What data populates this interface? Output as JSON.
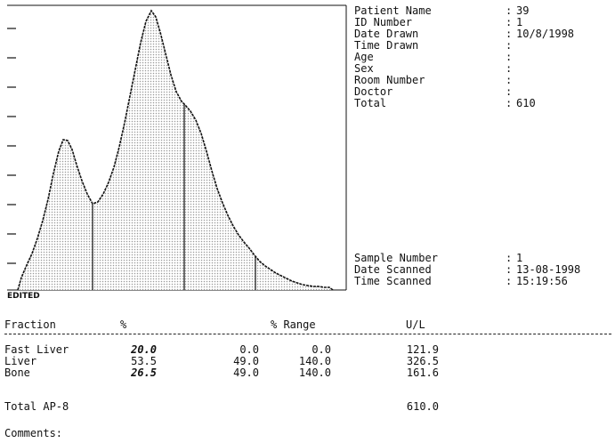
{
  "report": {
    "chart_tag": "EDITED",
    "patient_info": [
      {
        "label": "Patient Name",
        "value": "39"
      },
      {
        "label": "ID Number",
        "value": "1"
      },
      {
        "label": "Date Drawn",
        "value": "10/8/1998"
      },
      {
        "label": "Time Drawn",
        "value": ""
      },
      {
        "label": "Age",
        "value": ""
      },
      {
        "label": "Sex",
        "value": ""
      },
      {
        "label": "Room Number",
        "value": ""
      },
      {
        "label": "Doctor",
        "value": ""
      },
      {
        "label": "Total",
        "value": "610"
      }
    ],
    "sample_info": [
      {
        "label": "Sample Number",
        "value": "1"
      },
      {
        "label": "Date Scanned",
        "value": "13-08-1998"
      },
      {
        "label": "Time Scanned",
        "value": "15:19:56"
      }
    ],
    "colon": ":",
    "table": {
      "headers": {
        "fraction": "Fraction",
        "percent": "%",
        "range": "% Range",
        "units": "U/L"
      },
      "rows": [
        {
          "name": "Fast Liver",
          "percent": "20.0",
          "range_low": "0.0",
          "range_high": "0.0",
          "units": "121.9"
        },
        {
          "name": "Liver",
          "percent": "53.5",
          "range_low": "49.0",
          "range_high": "140.0",
          "units": "326.5"
        },
        {
          "name": "Bone",
          "percent": "26.5",
          "range_low": "49.0",
          "range_high": "140.0",
          "units": "161.6"
        }
      ],
      "total_label": "Total AP-8",
      "total_value": "610.0"
    },
    "comments_label": "Comments:"
  },
  "colors": {
    "ink": "#111111",
    "fill_dots": "#9a9a9a"
  }
}
